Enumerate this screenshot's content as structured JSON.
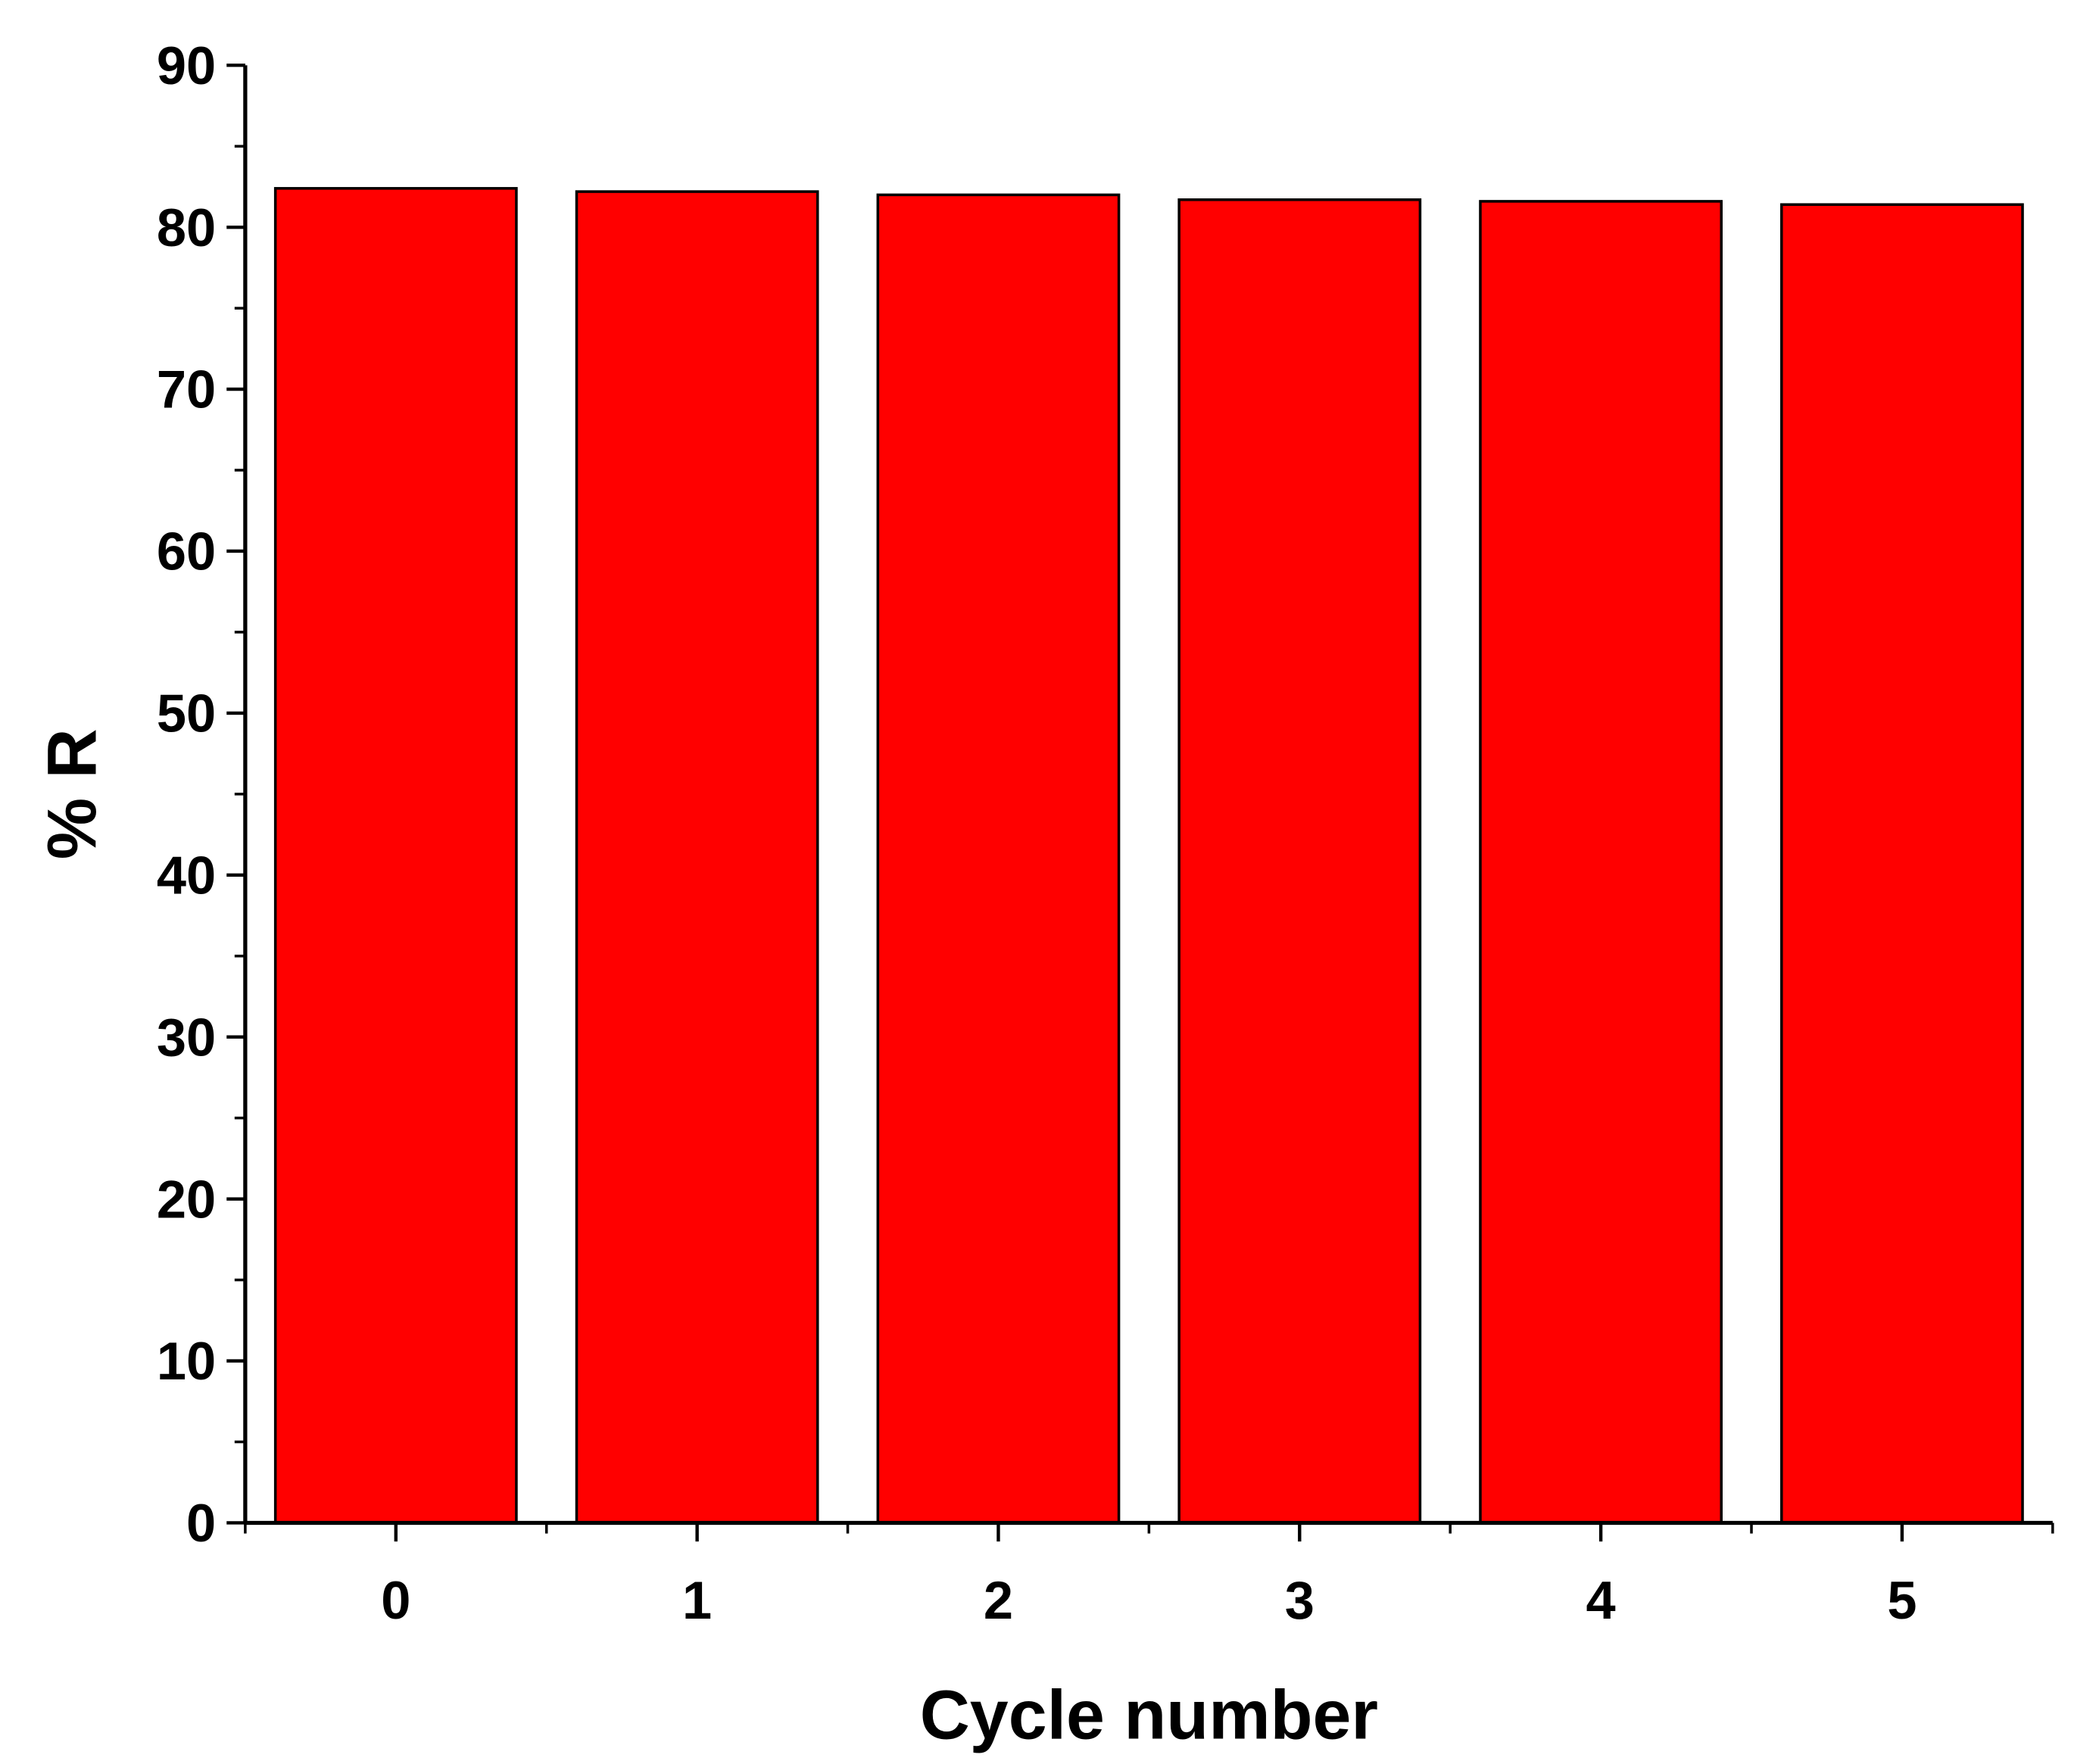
{
  "chart_data": {
    "type": "bar",
    "x_label": "Cycle number",
    "y_label": "% R",
    "categories": [
      "0",
      "1",
      "2",
      "3",
      "4",
      "5"
    ],
    "values": [
      82.4,
      82.2,
      82.0,
      81.7,
      81.6,
      81.4
    ],
    "color": "#ff0000",
    "edgecolor": "#000000",
    "ylim": [
      0,
      90
    ],
    "yticks": [
      0,
      10,
      20,
      30,
      40,
      50,
      60,
      70,
      80,
      90
    ],
    "grid": false
  }
}
